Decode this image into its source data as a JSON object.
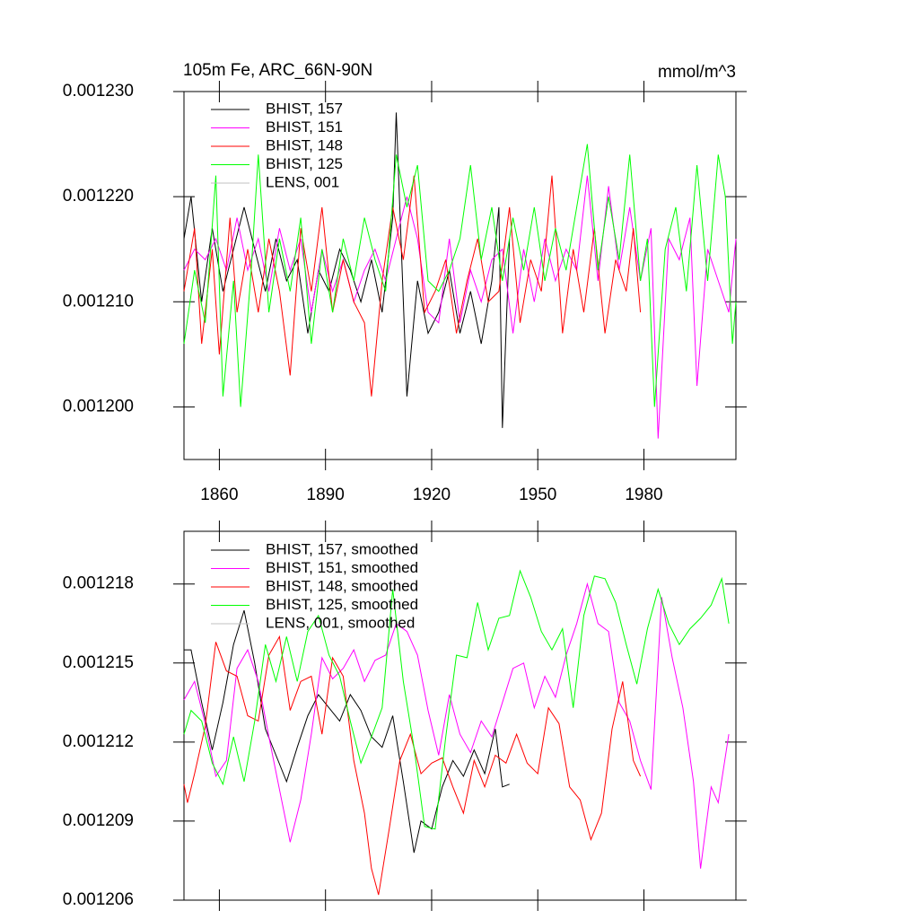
{
  "chart_data": [
    {
      "type": "line",
      "title": "105m Fe, ARC_66N-90N",
      "units": "mmol/m^3",
      "xlim": [
        1850,
        2006
      ],
      "xticks": [
        1860,
        1890,
        1920,
        1950,
        1980
      ],
      "ylim": [
        0.001195,
        0.00123
      ],
      "yticks": [
        {
          "value": 0.0012,
          "label": "0.001200"
        },
        {
          "value": 0.00121,
          "label": "0.001210"
        },
        {
          "value": 0.00122,
          "label": "0.001220"
        },
        {
          "value": 0.00123,
          "label": "0.001230"
        }
      ],
      "legend": "top-left",
      "series": [
        {
          "name": "BHIST, 157",
          "color": "#000000",
          "x": [
            1850,
            1852,
            1855,
            1858,
            1861,
            1864,
            1867,
            1870,
            1873,
            1876,
            1879,
            1882,
            1885,
            1888,
            1891,
            1894,
            1897,
            1900,
            1903,
            1906,
            1909,
            1910,
            1913,
            1916,
            1919,
            1922,
            1925,
            1928,
            1931,
            1934,
            1937,
            1939,
            1940,
            1942
          ],
          "values": [
            0.001216,
            0.00122,
            0.00121,
            0.001217,
            0.001211,
            0.001215,
            0.001219,
            0.001215,
            0.001211,
            0.001216,
            0.001212,
            0.001214,
            0.001207,
            0.001213,
            0.001211,
            0.001215,
            0.001213,
            0.00121,
            0.001214,
            0.001209,
            0.001218,
            0.001228,
            0.001201,
            0.001212,
            0.001207,
            0.001209,
            0.001213,
            0.001207,
            0.001211,
            0.001206,
            0.001212,
            0.001219,
            0.001198,
            0.001216
          ]
        },
        {
          "name": "BHIST, 151",
          "color": "#ff00ff",
          "x": [
            1850,
            1853,
            1856,
            1859,
            1862,
            1865,
            1868,
            1871,
            1874,
            1877,
            1880,
            1883,
            1886,
            1889,
            1892,
            1895,
            1898,
            1901,
            1904,
            1907,
            1910,
            1913,
            1916,
            1919,
            1922,
            1925,
            1928,
            1931,
            1934,
            1937,
            1940,
            1943,
            1946,
            1949,
            1952,
            1955,
            1958,
            1961,
            1964,
            1967,
            1970,
            1973,
            1976,
            1979,
            1982,
            1984,
            1987,
            1990,
            1993,
            1995,
            1998,
            2001,
            2004,
            2006
          ],
          "values": [
            0.001213,
            0.001215,
            0.001214,
            0.001216,
            0.001213,
            0.001218,
            0.001213,
            0.001216,
            0.001211,
            0.001217,
            0.001213,
            0.001216,
            0.001209,
            0.001215,
            0.001211,
            0.001214,
            0.00121,
            0.001213,
            0.001215,
            0.001212,
            0.001216,
            0.00122,
            0.001216,
            0.001209,
            0.001208,
            0.001216,
            0.001208,
            0.001213,
            0.00121,
            0.001214,
            0.001215,
            0.001207,
            0.001215,
            0.00121,
            0.001216,
            0.001212,
            0.001215,
            0.001213,
            0.001222,
            0.001212,
            0.001221,
            0.001213,
            0.001219,
            0.001212,
            0.001217,
            0.001197,
            0.001216,
            0.001214,
            0.001218,
            0.001202,
            0.001215,
            0.001212,
            0.001209,
            0.001216
          ]
        },
        {
          "name": "BHIST, 148",
          "color": "#ff0000",
          "x": [
            1850,
            1853,
            1855,
            1858,
            1860,
            1863,
            1865,
            1868,
            1871,
            1874,
            1877,
            1880,
            1883,
            1886,
            1889,
            1892,
            1895,
            1898,
            1901,
            1903,
            1906,
            1909,
            1912,
            1915,
            1918,
            1921,
            1924,
            1927,
            1930,
            1933,
            1936,
            1939,
            1942,
            1945,
            1948,
            1951,
            1954,
            1957,
            1960,
            1963,
            1966,
            1969,
            1972,
            1975,
            1977,
            1979
          ],
          "values": [
            0.001211,
            0.001217,
            0.001206,
            0.001215,
            0.001205,
            0.001218,
            0.001209,
            0.001215,
            0.001209,
            0.001216,
            0.001211,
            0.001203,
            0.001217,
            0.001211,
            0.001219,
            0.001209,
            0.001214,
            0.00121,
            0.001208,
            0.001201,
            0.001212,
            0.001219,
            0.001214,
            0.001222,
            0.001209,
            0.001211,
            0.001214,
            0.001207,
            0.001212,
            0.001216,
            0.00121,
            0.001211,
            0.001219,
            0.001208,
            0.001214,
            0.001211,
            0.001222,
            0.001207,
            0.001215,
            0.001209,
            0.001217,
            0.001207,
            0.001214,
            0.001211,
            0.001217,
            0.001209
          ]
        },
        {
          "name": "BHIST, 125",
          "color": "#00ff00",
          "x": [
            1850,
            1853,
            1856,
            1859,
            1861,
            1864,
            1866,
            1869,
            1871,
            1874,
            1877,
            1880,
            1883,
            1886,
            1889,
            1892,
            1895,
            1898,
            1901,
            1904,
            1907,
            1910,
            1913,
            1916,
            1919,
            1922,
            1925,
            1928,
            1931,
            1934,
            1937,
            1940,
            1943,
            1946,
            1949,
            1952,
            1955,
            1958,
            1961,
            1964,
            1967,
            1970,
            1973,
            1976,
            1979,
            1981,
            1983,
            1986,
            1989,
            1992,
            1995,
            1998,
            2001,
            2003,
            2005,
            2006
          ],
          "values": [
            0.001206,
            0.001213,
            0.001208,
            0.001222,
            0.001201,
            0.001212,
            0.0012,
            0.001213,
            0.001224,
            0.001209,
            0.001216,
            0.001211,
            0.001218,
            0.001206,
            0.001215,
            0.001209,
            0.001216,
            0.001212,
            0.001218,
            0.001214,
            0.001211,
            0.001224,
            0.001219,
            0.001223,
            0.001212,
            0.001211,
            0.001213,
            0.001216,
            0.001223,
            0.001214,
            0.001219,
            0.001212,
            0.001218,
            0.001213,
            0.001219,
            0.001212,
            0.001217,
            0.001213,
            0.001219,
            0.001225,
            0.001213,
            0.00122,
            0.001214,
            0.001224,
            0.001212,
            0.001216,
            0.0012,
            0.001215,
            0.001219,
            0.001211,
            0.001223,
            0.001212,
            0.001224,
            0.00122,
            0.001206,
            0.00121
          ]
        },
        {
          "name": "LENS, 001",
          "color": "#c0c0c0",
          "x": [],
          "values": []
        }
      ]
    },
    {
      "type": "line",
      "xlim": [
        1850,
        2006
      ],
      "xticks": [
        1860,
        1890,
        1920,
        1950,
        1980
      ],
      "ylim": [
        0.001206,
        0.00122
      ],
      "yticks": [
        0.001206,
        0.001209,
        0.001212,
        0.001215,
        0.001218
      ],
      "legend": "top-left",
      "series": [
        {
          "name": "BHIST, 157, smoothed",
          "color": "#000000",
          "x": [
            1850,
            1852,
            1855,
            1858,
            1861,
            1864,
            1867,
            1870,
            1873,
            1876,
            1879,
            1882,
            1885,
            1888,
            1891,
            1894,
            1897,
            1900,
            1903,
            1906,
            1909,
            1912,
            1915,
            1917,
            1920,
            1923,
            1926,
            1929,
            1932,
            1935,
            1938,
            1940,
            1942
          ],
          "values": [
            0.0012155,
            0.0012155,
            0.0012135,
            0.0012117,
            0.0012135,
            0.0012157,
            0.001217,
            0.001215,
            0.0012125,
            0.0012115,
            0.0012105,
            0.0012118,
            0.001213,
            0.0012138,
            0.0012133,
            0.0012128,
            0.0012138,
            0.0012132,
            0.0012122,
            0.0012118,
            0.001213,
            0.0012105,
            0.0012078,
            0.001209,
            0.0012087,
            0.0012103,
            0.0012113,
            0.0012107,
            0.0012117,
            0.0012108,
            0.0012125,
            0.0012103,
            0.0012104
          ]
        },
        {
          "name": "BHIST, 151, smoothed",
          "color": "#ff00ff",
          "x": [
            1850,
            1853,
            1856,
            1859,
            1862,
            1865,
            1868,
            1871,
            1874,
            1877,
            1880,
            1883,
            1886,
            1889,
            1892,
            1895,
            1898,
            1901,
            1904,
            1907,
            1910,
            1913,
            1916,
            1919,
            1922,
            1925,
            1928,
            1931,
            1934,
            1937,
            1940,
            1943,
            1946,
            1949,
            1952,
            1955,
            1958,
            1961,
            1964,
            1967,
            1970,
            1973,
            1976,
            1979,
            1982,
            1985,
            1988,
            1991,
            1994,
            1996,
            1999,
            2001,
            2004
          ],
          "values": [
            0.0012136,
            0.0012143,
            0.0012127,
            0.0012107,
            0.0012113,
            0.0012148,
            0.0012155,
            0.0012143,
            0.0012122,
            0.0012102,
            0.0012082,
            0.0012098,
            0.0012123,
            0.0012152,
            0.0012144,
            0.0012148,
            0.0012155,
            0.0012143,
            0.0012151,
            0.0012153,
            0.0012165,
            0.0012162,
            0.0012153,
            0.0012132,
            0.0012115,
            0.0012138,
            0.0012123,
            0.0012116,
            0.0012128,
            0.0012122,
            0.0012135,
            0.0012148,
            0.001215,
            0.0012133,
            0.0012145,
            0.0012137,
            0.0012153,
            0.0012165,
            0.001218,
            0.0012165,
            0.0012162,
            0.0012135,
            0.0012128,
            0.0012113,
            0.0012102,
            0.0012175,
            0.0012152,
            0.0012133,
            0.0012105,
            0.0012072,
            0.0012103,
            0.0012097,
            0.0012123
          ]
        },
        {
          "name": "BHIST, 148, smoothed",
          "color": "#ff0000",
          "x": [
            1850,
            1851,
            1853,
            1856,
            1859,
            1862,
            1865,
            1868,
            1871,
            1874,
            1877,
            1880,
            1883,
            1886,
            1889,
            1892,
            1895,
            1898,
            1901,
            1903,
            1905,
            1908,
            1911,
            1914,
            1917,
            1920,
            1923,
            1926,
            1929,
            1932,
            1935,
            1938,
            1941,
            1944,
            1947,
            1950,
            1953,
            1956,
            1959,
            1962,
            1965,
            1968,
            1971,
            1974,
            1977,
            1979
          ],
          "values": [
            0.0012104,
            0.0012097,
            0.0012108,
            0.0012126,
            0.0012158,
            0.0012147,
            0.0012145,
            0.001213,
            0.0012128,
            0.0012153,
            0.001216,
            0.0012132,
            0.0012143,
            0.0012145,
            0.0012123,
            0.0012152,
            0.0012145,
            0.0012113,
            0.0012093,
            0.0012072,
            0.0012062,
            0.0012087,
            0.0012113,
            0.0012123,
            0.0012108,
            0.0012112,
            0.0012114,
            0.0012103,
            0.0012093,
            0.0012113,
            0.0012103,
            0.0012115,
            0.0012112,
            0.0012123,
            0.0012112,
            0.0012108,
            0.0012133,
            0.0012127,
            0.0012103,
            0.0012098,
            0.0012083,
            0.0012093,
            0.0012125,
            0.0012143,
            0.0012113,
            0.0012107
          ]
        },
        {
          "name": "BHIST, 125, smoothed",
          "color": "#00ff00",
          "x": [
            1850,
            1852,
            1855,
            1858,
            1861,
            1864,
            1867,
            1870,
            1873,
            1876,
            1879,
            1882,
            1885,
            1888,
            1891,
            1894,
            1897,
            1900,
            1903,
            1906,
            1909,
            1912,
            1915,
            1918,
            1921,
            1924,
            1927,
            1930,
            1933,
            1936,
            1939,
            1942,
            1945,
            1948,
            1951,
            1954,
            1957,
            1960,
            1963,
            1966,
            1969,
            1972,
            1975,
            1978,
            1981,
            1984,
            1987,
            1990,
            1993,
            1996,
            1999,
            2002,
            2004
          ],
          "values": [
            0.0012123,
            0.0012132,
            0.0012128,
            0.0012112,
            0.0012104,
            0.0012122,
            0.0012105,
            0.0012128,
            0.0012157,
            0.0012143,
            0.001216,
            0.0012143,
            0.0012162,
            0.0012168,
            0.0012153,
            0.0012145,
            0.0012128,
            0.0012112,
            0.0012122,
            0.0012133,
            0.0012178,
            0.0012143,
            0.0012118,
            0.0012088,
            0.0012087,
            0.0012122,
            0.0012153,
            0.0012152,
            0.0012173,
            0.0012155,
            0.0012167,
            0.0012168,
            0.0012185,
            0.0012175,
            0.0012162,
            0.0012155,
            0.0012163,
            0.0012133,
            0.0012168,
            0.0012183,
            0.0012182,
            0.0012173,
            0.0012157,
            0.0012142,
            0.0012163,
            0.0012178,
            0.0012165,
            0.0012157,
            0.0012163,
            0.0012167,
            0.0012172,
            0.0012182,
            0.0012165
          ]
        },
        {
          "name": "LENS, 001, smoothed",
          "color": "#c0c0c0",
          "x": [],
          "values": []
        }
      ]
    }
  ]
}
